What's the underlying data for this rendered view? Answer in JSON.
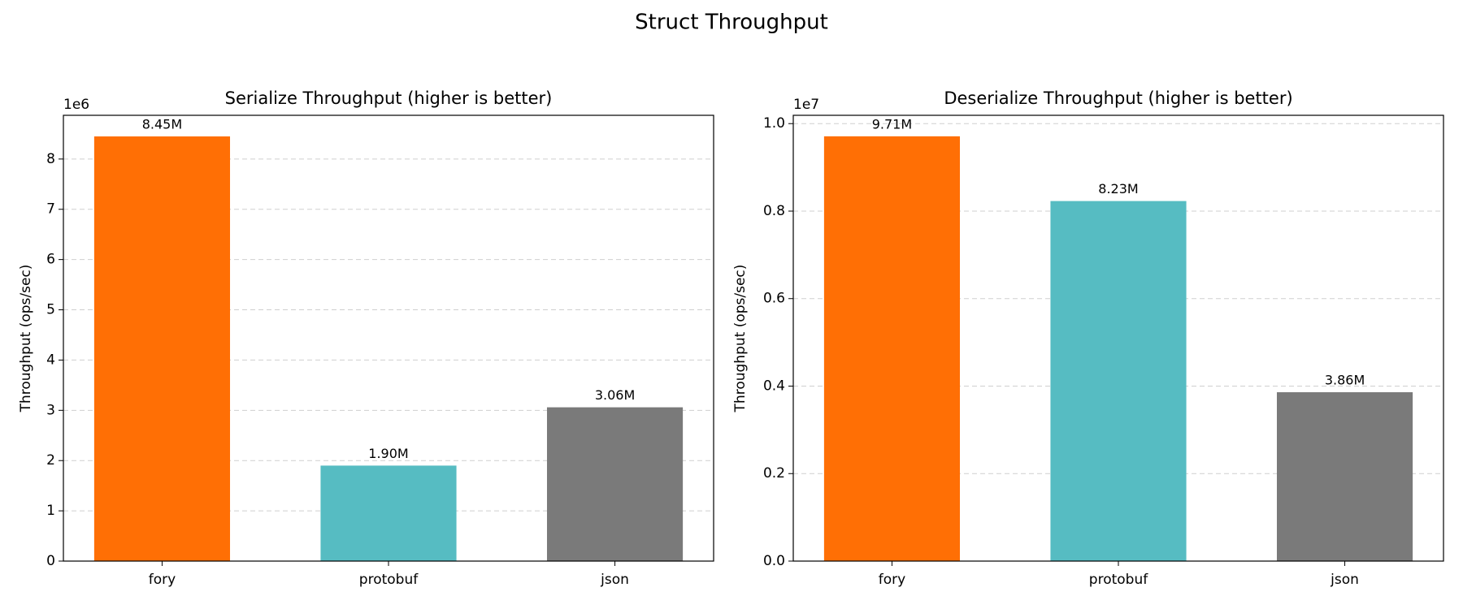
{
  "title": "Struct Throughput",
  "chart_data": [
    {
      "type": "bar",
      "title": "Serialize Throughput (higher is better)",
      "ylabel": "Throughput (ops/sec)",
      "y_offset_label": "1e6",
      "categories": [
        "fory",
        "protobuf",
        "json"
      ],
      "values": [
        8450000,
        1900000,
        3060000
      ],
      "value_labels": [
        "8.45M",
        "1.90M",
        "3.06M"
      ],
      "colors": [
        "#ff6f05",
        "#56bcc2",
        "#7a7a7a"
      ],
      "ylim": [
        0,
        8870000
      ],
      "yticks": [
        {
          "value": 0,
          "label": "0"
        },
        {
          "value": 1000000,
          "label": "1"
        },
        {
          "value": 2000000,
          "label": "2"
        },
        {
          "value": 3000000,
          "label": "3"
        },
        {
          "value": 4000000,
          "label": "4"
        },
        {
          "value": 5000000,
          "label": "5"
        },
        {
          "value": 6000000,
          "label": "6"
        },
        {
          "value": 7000000,
          "label": "7"
        },
        {
          "value": 8000000,
          "label": "8"
        }
      ],
      "grid": true
    },
    {
      "type": "bar",
      "title": "Deserialize Throughput (higher is better)",
      "ylabel": "Throughput (ops/sec)",
      "y_offset_label": "1e7",
      "categories": [
        "fory",
        "protobuf",
        "json"
      ],
      "values": [
        9710000,
        8230000,
        3860000
      ],
      "value_labels": [
        "9.71M",
        "8.23M",
        "3.86M"
      ],
      "colors": [
        "#ff6f05",
        "#56bcc2",
        "#7a7a7a"
      ],
      "ylim": [
        0,
        10190000
      ],
      "yticks": [
        {
          "value": 0,
          "label": "0.0"
        },
        {
          "value": 2000000,
          "label": "0.2"
        },
        {
          "value": 4000000,
          "label": "0.4"
        },
        {
          "value": 6000000,
          "label": "0.6"
        },
        {
          "value": 8000000,
          "label": "0.8"
        },
        {
          "value": 10000000,
          "label": "1.0"
        }
      ],
      "grid": true
    }
  ]
}
